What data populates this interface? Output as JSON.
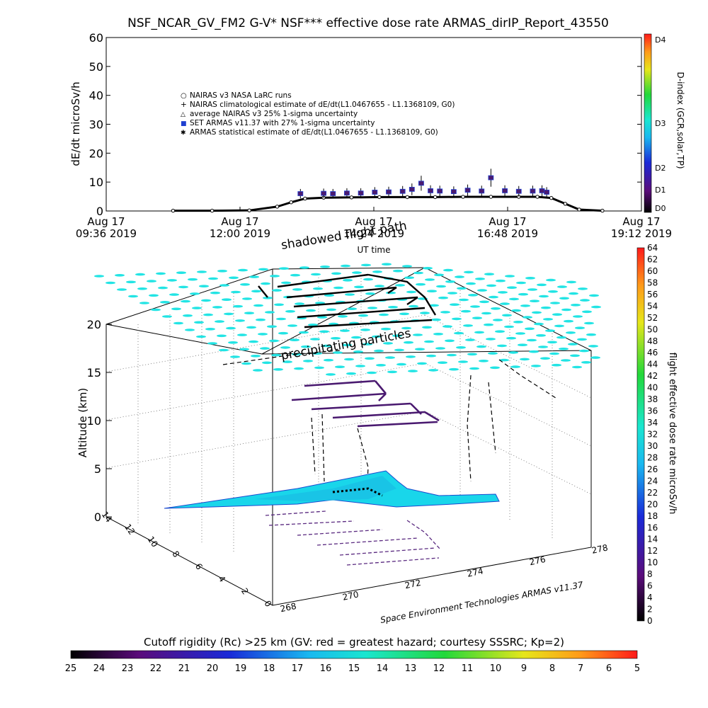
{
  "title": "NSF_NCAR_GV_FM2 G-V* NSF*** effective dose rate ARMAS_dirIP_Report_43550",
  "top_chart": {
    "ylabel": "dE/dt microSv/h",
    "xlabel": "UT time",
    "right_label": "D-index (GCR,solar,TP)",
    "d_ticks": [
      "D4",
      "D3",
      "D2",
      "D1",
      "D0"
    ],
    "legend": [
      {
        "marker": "○",
        "text": "NAIRAS v3 NASA LaRC runs"
      },
      {
        "marker": "+",
        "text": "NAIRAS climatological estimate of dE/dt(L1.0467655 - L1.1368109, G0)"
      },
      {
        "marker": "△",
        "text": "average NAIRAS v3 25% 1-sigma uncertainty"
      },
      {
        "marker": "■",
        "text": "SET ARMAS v11.37 with 27% 1-sigma uncertainty",
        "color": "#1f3fd0"
      },
      {
        "marker": "✱",
        "text": "ARMAS statistical estimate of dE/dt(L1.0467655 - L1.1368109, G0)"
      }
    ]
  },
  "chart_data": [
    {
      "type": "scatter",
      "title": "NSF_NCAR_GV_FM2 G-V* NSF*** effective dose rate ARMAS_dirIP_Report_43550",
      "xlabel": "UT time",
      "ylabel": "dE/dt microSv/h",
      "ylim": [
        0,
        60
      ],
      "yticks": [
        0,
        10,
        20,
        30,
        40,
        50,
        60
      ],
      "xlim": [
        "09:36",
        "19:12"
      ],
      "xticks": [
        {
          "t": "09:36",
          "line1": "Aug 17",
          "line2": "09:36 2019"
        },
        {
          "t": "12:00",
          "line1": "Aug 17",
          "line2": "12:00 2019"
        },
        {
          "t": "14:24",
          "line1": "Aug 17",
          "line2": "14:24 2019"
        },
        {
          "t": "16:48",
          "line1": "Aug 17",
          "line2": "16:48 2019"
        },
        {
          "t": "19:12",
          "line1": "Aug 17",
          "line2": "19:12 2019"
        }
      ],
      "series": [
        {
          "name": "NAIRAS climatological estimate of dE/dt(L1.0467655 - L1.1368109, G0)",
          "x": [
            "10:48",
            "11:30",
            "12:10",
            "12:40",
            "12:55",
            "13:10",
            "13:30",
            "14:00",
            "14:30",
            "15:00",
            "15:30",
            "16:00",
            "16:30",
            "17:00",
            "17:20",
            "17:35",
            "17:50",
            "18:05",
            "18:30"
          ],
          "y": [
            0.1,
            0.1,
            0.2,
            1.5,
            3.0,
            4.3,
            4.6,
            4.7,
            4.8,
            4.8,
            4.8,
            4.9,
            4.9,
            4.9,
            4.9,
            4.5,
            2.5,
            0.5,
            0.1
          ]
        },
        {
          "name": "SET ARMAS v11.37 with 27% 1-sigma uncertainty",
          "x": [
            "13:05",
            "13:30",
            "13:40",
            "13:55",
            "14:10",
            "14:25",
            "14:40",
            "14:55",
            "15:05",
            "15:15",
            "15:25",
            "15:35",
            "15:50",
            "16:05",
            "16:20",
            "16:30",
            "16:45",
            "17:00",
            "17:15",
            "17:25",
            "17:30"
          ],
          "y": [
            6.0,
            6.1,
            6.0,
            6.2,
            6.2,
            6.5,
            6.6,
            6.8,
            7.5,
            9.6,
            7.0,
            6.9,
            6.7,
            7.2,
            6.9,
            11.5,
            7.0,
            6.8,
            6.9,
            7.0,
            6.5
          ]
        }
      ]
    },
    {
      "type": "scatter",
      "subtype": "3d-flight-track",
      "ylabel": "Altitude (km)",
      "zlim": [
        0,
        20
      ],
      "zticks": [
        0,
        5,
        10,
        15,
        20
      ],
      "lon_ticks": [
        "268",
        "270",
        "272",
        "274",
        "276",
        "278"
      ],
      "lat_ticks": [
        "0",
        "2",
        "4",
        "6",
        "8",
        "10",
        "12",
        "14"
      ],
      "annotations": [
        "shadowed flight path",
        "precipitating particles"
      ],
      "credit": "Space Environment Technologies ARMAS v11.37"
    }
  ],
  "dose_colorbar": {
    "label": "flight effective dose rate microSv/h",
    "ticks": [
      "0",
      "2",
      "4",
      "6",
      "8",
      "10",
      "12",
      "14",
      "16",
      "18",
      "20",
      "22",
      "24",
      "26",
      "28",
      "30",
      "32",
      "34",
      "36",
      "38",
      "40",
      "42",
      "44",
      "46",
      "48",
      "50",
      "52",
      "54",
      "56",
      "58",
      "60",
      "62",
      "64"
    ]
  },
  "cutoff_colorbar": {
    "label": "Cutoff rigidity (Rc) >25 km (GV: red = greatest hazard; courtesy SSSRC; Kp=2)",
    "ticks": [
      "25",
      "24",
      "23",
      "22",
      "21",
      "20",
      "19",
      "18",
      "17",
      "16",
      "15",
      "14",
      "13",
      "12",
      "11",
      "10",
      "9",
      "8",
      "7",
      "6",
      "5"
    ]
  }
}
